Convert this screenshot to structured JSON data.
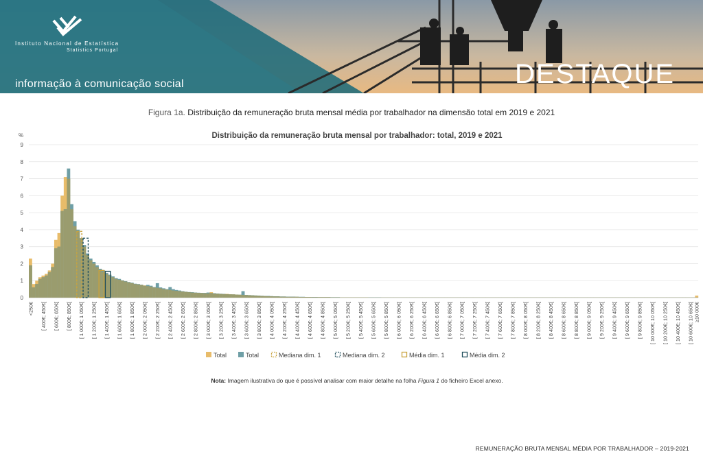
{
  "header": {
    "institute_name": "Instituto Nacional de Estatística",
    "institute_sub": "Statistics Portugal",
    "tagline": "informação à comunicação social",
    "badge": "DESTAQUE"
  },
  "figure": {
    "prefix": "Figura 1a.",
    "title": "Distribuição da remuneração bruta mensal média por trabalhador na dimensão total em 2019 e 2021"
  },
  "note": {
    "label": "Nota:",
    "text_before": " Imagem ilustrativa do que é possível analisar com maior detalhe na folha ",
    "sheet": "Figura 1",
    "text_after": " do ficheiro Excel anexo."
  },
  "footer": "REMUNERAÇÃO BRUTA MENSAL MÉDIA POR TRABALHADOR – 2019-2021",
  "colors": {
    "total_2019": "#E8BC6A",
    "total_2021": "#6F9FA6",
    "overlap": "#9A9C6E",
    "grid": "#E5E5E5",
    "mediana_1": "#C9A23C",
    "mediana_2": "#1F4E5C",
    "media_1": "#C9A23C",
    "media_2": "#1F4E5C"
  },
  "chart_data": {
    "type": "bar",
    "title": "Distribuição da remuneração bruta mensal por trabalhador: total, 2019 e 2021",
    "ylabel": "%",
    "ylim": [
      0,
      9
    ],
    "yticks": [
      0,
      1,
      2,
      3,
      4,
      5,
      6,
      7,
      8,
      9
    ],
    "grid": true,
    "legend_position": "bottom",
    "first_label": "<250€",
    "last_label": "≥10 000€",
    "bin_start": 250,
    "bin_width": 50,
    "bin_end": 10000,
    "tick_label_every": 4,
    "tick_label_first_bin": 4,
    "series": [
      {
        "name": "Total",
        "values": [
          2.3,
          0.8,
          1.0,
          1.2,
          1.3,
          1.4,
          1.6,
          2.0,
          3.4,
          3.8,
          6.0,
          7.1,
          7.0,
          5.2,
          4.2,
          3.9,
          3.5,
          3.0,
          2.5,
          2.2,
          2.0,
          1.8,
          1.6,
          1.5,
          1.4,
          1.3,
          1.2,
          1.1,
          1.05,
          1.0,
          0.95,
          0.9,
          0.85,
          0.8,
          0.78,
          0.75,
          0.72,
          0.68,
          0.65,
          0.6,
          0.58,
          0.55,
          0.5,
          0.48,
          0.45,
          0.42,
          0.4,
          0.38,
          0.36,
          0.34,
          0.32,
          0.3,
          0.29,
          0.28,
          0.27,
          0.26,
          0.25,
          0.32,
          0.24,
          0.23,
          0.22,
          0.21,
          0.22,
          0.2,
          0.19,
          0.18,
          0.17,
          0.16,
          0.15,
          0.14,
          0.13,
          0.12,
          0.11,
          0.1,
          0.09,
          0.08,
          0.08,
          0.07,
          0.07,
          0.06,
          0.06,
          0.05,
          0.05,
          0.05,
          0.05,
          0.04,
          0.04,
          0.04,
          0.04,
          0.03,
          0.03,
          0.03,
          0.03,
          0.03,
          0.03,
          0.02,
          0.02,
          0.02,
          0.02,
          0.02,
          0.02,
          0.02,
          0.02,
          0.02,
          0.02,
          0.02,
          0.02,
          0.01,
          0.01,
          0.01,
          0.01,
          0.01,
          0.01,
          0.01,
          0.01,
          0.01,
          0.01,
          0.01,
          0.01,
          0.01,
          0.01,
          0.01,
          0.01,
          0.01,
          0.01,
          0.01,
          0.01,
          0.01,
          0.01,
          0.01,
          0.01,
          0.01,
          0.01,
          0.01,
          0.01,
          0.01,
          0.01,
          0.01,
          0.01,
          0.01,
          0.01,
          0.01,
          0.01,
          0.01,
          0.01,
          0.01,
          0.01,
          0.01,
          0.01,
          0.01,
          0.01,
          0.01,
          0.01,
          0.01,
          0.01,
          0.01,
          0.01,
          0.01,
          0.01,
          0.01,
          0.01,
          0.01,
          0.01,
          0.01,
          0.01,
          0.01,
          0.01,
          0.01,
          0.01,
          0.01,
          0.01,
          0.01,
          0.01,
          0.01,
          0.01,
          0.01,
          0.01,
          0.01,
          0.01,
          0.01,
          0.01,
          0.01,
          0.01,
          0.01,
          0.01,
          0.01,
          0.01,
          0.01,
          0.01,
          0.01,
          0.01,
          0.01,
          0.01,
          0.01,
          0.01,
          0.01,
          0.01,
          0.01,
          0.01,
          0.01,
          0.01,
          0.01,
          0.01,
          0.01,
          0.01,
          0.01,
          0.01,
          0.01,
          0.01,
          0.01,
          0.12
        ]
      },
      {
        "name": "Total",
        "values": [
          1.9,
          0.6,
          0.8,
          1.1,
          1.2,
          1.3,
          1.5,
          1.8,
          2.9,
          3.0,
          5.1,
          5.2,
          7.6,
          5.5,
          4.5,
          4.0,
          3.5,
          3.1,
          2.6,
          2.3,
          2.1,
          1.9,
          1.7,
          1.6,
          1.45,
          1.35,
          1.25,
          1.15,
          1.1,
          1.02,
          0.97,
          0.92,
          0.88,
          0.82,
          0.8,
          0.76,
          0.7,
          0.75,
          0.7,
          0.62,
          0.85,
          0.6,
          0.55,
          0.5,
          0.62,
          0.5,
          0.45,
          0.42,
          0.38,
          0.35,
          0.33,
          0.32,
          0.3,
          0.29,
          0.28,
          0.28,
          0.3,
          0.27,
          0.26,
          0.24,
          0.23,
          0.22,
          0.2,
          0.19,
          0.19,
          0.18,
          0.17,
          0.38,
          0.16,
          0.15,
          0.14,
          0.13,
          0.12,
          0.11,
          0.1,
          0.1,
          0.09,
          0.08,
          0.08,
          0.07,
          0.07,
          0.06,
          0.06,
          0.06,
          0.05,
          0.05,
          0.05,
          0.04,
          0.04,
          0.04,
          0.04,
          0.03,
          0.03,
          0.03,
          0.03,
          0.03,
          0.03,
          0.03,
          0.02,
          0.02,
          0.02,
          0.02,
          0.02,
          0.02,
          0.02,
          0.02,
          0.02,
          0.02,
          0.02,
          0.02,
          0.02,
          0.01,
          0.01,
          0.01,
          0.01,
          0.01,
          0.01,
          0.01,
          0.01,
          0.01,
          0.01,
          0.01,
          0.01,
          0.01,
          0.01,
          0.01,
          0.01,
          0.01,
          0.01,
          0.01,
          0.01,
          0.01,
          0.01,
          0.01,
          0.01,
          0.01,
          0.01,
          0.01,
          0.01,
          0.01,
          0.01,
          0.01,
          0.01,
          0.01,
          0.01,
          0.01,
          0.01,
          0.01,
          0.01,
          0.01,
          0.01,
          0.01,
          0.01,
          0.01,
          0.01,
          0.01,
          0.01,
          0.01,
          0.01,
          0.01,
          0.01,
          0.01,
          0.01,
          0.01,
          0.01,
          0.01,
          0.01,
          0.01,
          0.01,
          0.01,
          0.01,
          0.01,
          0.01,
          0.01,
          0.01,
          0.01,
          0.01,
          0.01,
          0.01,
          0.01,
          0.01,
          0.01,
          0.01,
          0.01,
          0.01,
          0.01,
          0.01,
          0.01,
          0.01,
          0.01,
          0.01,
          0.01,
          0.01,
          0.01,
          0.01,
          0.01,
          0.01,
          0.01,
          0.01,
          0.01,
          0.01,
          0.01,
          0.01,
          0.01,
          0.01,
          0.01,
          0.01,
          0.01,
          0.01,
          0.01,
          0.01,
          0.01,
          0.01,
          0.01,
          0.01,
          0.01,
          0.01,
          0.01,
          0.01,
          0.21
        ]
      }
    ],
    "markers": [
      {
        "name": "Mediana dim. 1",
        "bin": 15,
        "value": 3.9,
        "style": "dashed",
        "color_key": "mediana_1"
      },
      {
        "name": "Mediana dim. 2",
        "bin": 17,
        "value": 3.5,
        "style": "dashed",
        "color_key": "mediana_2"
      },
      {
        "name": "Média dim. 1",
        "bin": 22,
        "value": 1.6,
        "style": "solid",
        "color_key": "media_1"
      },
      {
        "name": "Média dim. 2",
        "bin": 24,
        "value": 1.55,
        "style": "solid",
        "color_key": "media_2"
      }
    ]
  }
}
